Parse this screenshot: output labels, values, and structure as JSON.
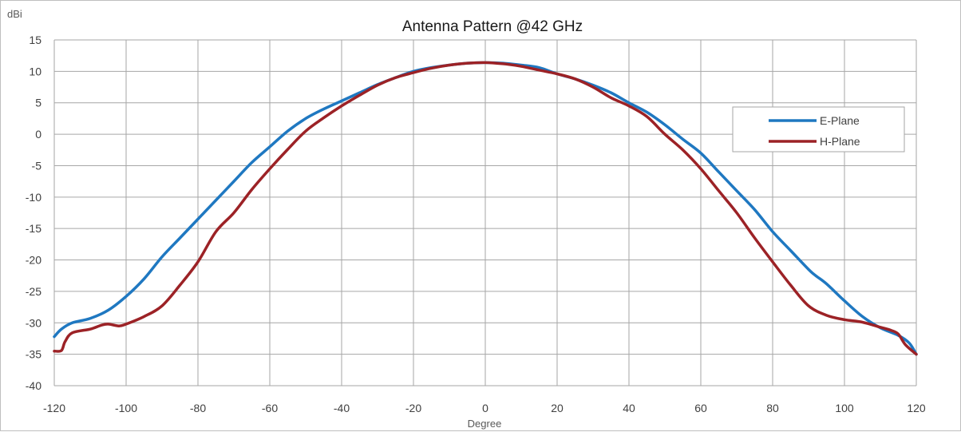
{
  "chart_data": {
    "type": "line",
    "title": "Antenna Pattern @42 GHz",
    "xlabel": "Degree",
    "ylabel": "dBi",
    "xlim": [
      -120,
      120
    ],
    "ylim": [
      -40,
      15
    ],
    "xticks": [
      -120,
      -100,
      -80,
      -60,
      -40,
      -20,
      0,
      20,
      40,
      60,
      80,
      100,
      120
    ],
    "yticks": [
      15,
      10,
      5,
      0,
      -5,
      -10,
      -15,
      -20,
      -25,
      -30,
      -35,
      -40
    ],
    "grid": true,
    "legend_position": "right",
    "series": [
      {
        "name": "E-Plane",
        "color": "#1f78c1",
        "x": [
          -120,
          -118,
          -115,
          -110,
          -105,
          -100,
          -95,
          -90,
          -85,
          -80,
          -75,
          -70,
          -65,
          -60,
          -55,
          -50,
          -45,
          -40,
          -35,
          -30,
          -25,
          -20,
          -15,
          -10,
          -5,
          0,
          5,
          10,
          15,
          20,
          25,
          30,
          35,
          40,
          45,
          50,
          55,
          60,
          65,
          70,
          75,
          80,
          85,
          90,
          92,
          95,
          100,
          105,
          110,
          115,
          118,
          120
        ],
        "y": [
          -32.2,
          -31.0,
          -30.0,
          -29.3,
          -28.0,
          -25.8,
          -23.0,
          -19.5,
          -16.5,
          -13.5,
          -10.5,
          -7.5,
          -4.5,
          -2.0,
          0.5,
          2.5,
          4.0,
          5.3,
          6.6,
          7.9,
          9.0,
          10.0,
          10.6,
          11.0,
          11.3,
          11.4,
          11.3,
          11.0,
          10.6,
          9.6,
          8.8,
          7.8,
          6.6,
          5.0,
          3.5,
          1.5,
          -0.8,
          -3.0,
          -6.0,
          -9.0,
          -12.0,
          -15.5,
          -18.5,
          -21.5,
          -22.5,
          -23.8,
          -26.5,
          -29.0,
          -30.8,
          -32.0,
          -33.2,
          -35.0
        ]
      },
      {
        "name": "H-Plane",
        "color": "#9c2226",
        "x": [
          -120,
          -118,
          -117,
          -115,
          -110,
          -107,
          -105,
          -102,
          -100,
          -95,
          -90,
          -85,
          -80,
          -75,
          -70,
          -65,
          -60,
          -55,
          -50,
          -45,
          -40,
          -35,
          -30,
          -25,
          -20,
          -15,
          -10,
          -5,
          0,
          5,
          10,
          15,
          20,
          25,
          30,
          35,
          40,
          45,
          50,
          55,
          60,
          65,
          70,
          75,
          80,
          85,
          90,
          95,
          100,
          105,
          110,
          113,
          115,
          117,
          120
        ],
        "y": [
          -34.5,
          -34.4,
          -33.0,
          -31.6,
          -31.0,
          -30.4,
          -30.2,
          -30.5,
          -30.2,
          -29.0,
          -27.3,
          -24.0,
          -20.3,
          -15.5,
          -12.5,
          -8.8,
          -5.5,
          -2.4,
          0.5,
          2.6,
          4.5,
          6.2,
          7.8,
          9.0,
          9.8,
          10.5,
          11.0,
          11.3,
          11.4,
          11.2,
          10.8,
          10.2,
          9.6,
          8.8,
          7.5,
          5.8,
          4.5,
          2.8,
          0.0,
          -2.5,
          -5.5,
          -9.0,
          -12.5,
          -16.5,
          -20.3,
          -24.0,
          -27.3,
          -28.8,
          -29.5,
          -29.9,
          -30.7,
          -31.2,
          -31.8,
          -33.5,
          -35.0
        ]
      }
    ]
  }
}
